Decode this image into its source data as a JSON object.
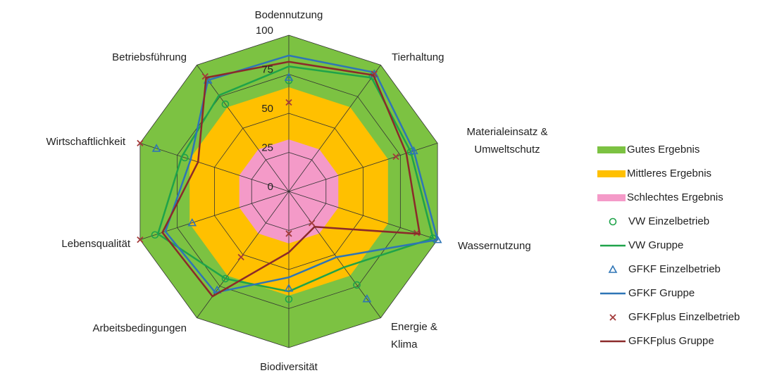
{
  "chart_data": {
    "type": "radar",
    "categories": [
      "Bodennutzung",
      "Tierhaltung",
      "Materialeinsatz & Umweltschutz",
      "Wassernutzung",
      "Energie & Klima",
      "Biodiversität",
      "Arbeitsbedingungen",
      "Lebensqualität",
      "Wirtschaftlichkeit",
      "Betriebsführung"
    ],
    "rlim": [
      0,
      100
    ],
    "rticks": [
      0,
      25,
      50,
      75,
      100
    ],
    "grid": true,
    "legend": "right",
    "series": [
      {
        "name": "Gutes Ergebnis",
        "color": "#7cc242",
        "style": "fill",
        "values": [
          100,
          100,
          100,
          100,
          100,
          100,
          100,
          100,
          100,
          100
        ]
      },
      {
        "name": "Mittleres Ergebnis",
        "color": "#ffc000",
        "style": "fill",
        "values": [
          66.7,
          66.7,
          66.7,
          66.7,
          66.7,
          66.7,
          66.7,
          66.7,
          66.7,
          66.7
        ]
      },
      {
        "name": "Schlechtes Ergebnis",
        "color": "#f49ac8",
        "style": "fill",
        "values": [
          33.3,
          33.3,
          33.3,
          33.3,
          33.3,
          33.3,
          33.3,
          33.3,
          33.3,
          33.3
        ]
      },
      {
        "name": "VW Einzelbetrieb",
        "color": "#1fa34a",
        "style": "circle",
        "values": [
          71,
          91,
          82,
          97,
          74,
          69,
          69,
          90,
          70,
          69
        ]
      },
      {
        "name": "VW Gruppe",
        "color": "#1fa34a",
        "style": "line",
        "values": [
          80,
          90,
          82,
          97,
          60,
          64,
          69,
          88,
          72,
          76
        ]
      },
      {
        "name": "GFKF Einzelbetrieb",
        "color": "#2e75b6",
        "style": "triangle",
        "values": [
          73,
          93,
          84,
          100,
          85,
          62,
          78,
          65,
          89,
          88
        ]
      },
      {
        "name": "GFKF Gruppe",
        "color": "#2e75b6",
        "style": "line",
        "values": [
          87,
          94,
          84,
          100,
          52,
          55,
          80,
          83,
          66,
          88
        ]
      },
      {
        "name": "GFKFplus Einzelbetrieb",
        "color": "#a33a3a",
        "style": "x",
        "values": [
          57,
          93,
          72,
          86,
          25,
          27,
          52,
          100,
          100,
          91
        ]
      },
      {
        "name": "GFKFplus Gruppe",
        "color": "#8b2a2a",
        "style": "line",
        "values": [
          83,
          92,
          79,
          88,
          28,
          39,
          83,
          85,
          61,
          90
        ]
      }
    ]
  }
}
